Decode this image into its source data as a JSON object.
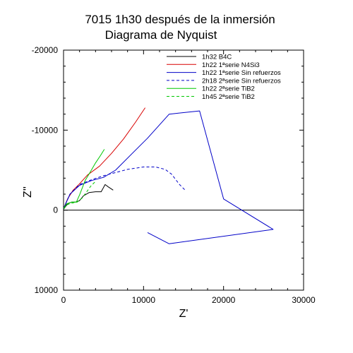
{
  "chart_data": {
    "type": "line",
    "title": "7015 1h30 después de la inmersión",
    "subtitle": "Diagrama de Nyquist",
    "xlabel": "Z'",
    "ylabel": "Z''",
    "xlim": [
      0,
      30000
    ],
    "ylim": [
      10000,
      -20000
    ],
    "y_inverted": true,
    "x_ticks": [
      0,
      10000,
      20000,
      30000
    ],
    "x_tick_labels": [
      "0",
      "10000",
      "20000",
      "30000"
    ],
    "y_ticks": [
      -20000,
      -10000,
      0,
      10000
    ],
    "y_tick_labels": [
      "-20000",
      "-10000",
      "0",
      "10000"
    ],
    "zero_line": true,
    "grid": false,
    "legend_position": "top-right",
    "series": [
      {
        "name": "1h32 B4C",
        "color": "#000000",
        "dash": "solid",
        "points": [
          [
            0,
            -100
          ],
          [
            500,
            -800
          ],
          [
            1000,
            -1000
          ],
          [
            1500,
            -1000
          ],
          [
            2000,
            -1200
          ],
          [
            2500,
            -1800
          ],
          [
            3200,
            -2200
          ],
          [
            4000,
            -2300
          ],
          [
            4700,
            -2300
          ],
          [
            5200,
            -3200
          ],
          [
            5600,
            -2900
          ],
          [
            6200,
            -2500
          ]
        ]
      },
      {
        "name": "1h22 1ªserie N4Si3",
        "color": "#d80000",
        "dash": "solid",
        "points": [
          [
            0,
            -200
          ],
          [
            500,
            -1400
          ],
          [
            1200,
            -2500
          ],
          [
            2000,
            -3300
          ],
          [
            3000,
            -4400
          ],
          [
            4500,
            -5500
          ],
          [
            6000,
            -7100
          ],
          [
            7500,
            -8900
          ],
          [
            9000,
            -11000
          ],
          [
            10200,
            -12800
          ]
        ]
      },
      {
        "name": "1h22 1ªserie Sin refuerzos",
        "color": "#0000c8",
        "dash": "solid",
        "points": [
          [
            0,
            -200
          ],
          [
            800,
            -2000
          ],
          [
            2000,
            -3100
          ],
          [
            3500,
            -3700
          ],
          [
            5000,
            -4100
          ],
          [
            6500,
            -5000
          ],
          [
            8500,
            -7000
          ],
          [
            10500,
            -9000
          ],
          [
            13200,
            -12000
          ],
          [
            17000,
            -12400
          ],
          [
            20000,
            -1400
          ],
          [
            26200,
            2400
          ],
          [
            13200,
            4200
          ],
          [
            10500,
            2800
          ]
        ]
      },
      {
        "name": "2h18 2ªserie Sin refuerzos",
        "color": "#0000c8",
        "dash": "dashed",
        "points": [
          [
            0,
            -200
          ],
          [
            800,
            -2000
          ],
          [
            2000,
            -3200
          ],
          [
            3500,
            -3800
          ],
          [
            5000,
            -4300
          ],
          [
            6500,
            -4700
          ],
          [
            8000,
            -5100
          ],
          [
            10000,
            -5400
          ],
          [
            11500,
            -5400
          ],
          [
            12700,
            -5100
          ],
          [
            13500,
            -4500
          ],
          [
            14500,
            -3200
          ],
          [
            15300,
            -2400
          ]
        ]
      },
      {
        "name": "1h22 2ªserie TiB2",
        "color": "#00c800",
        "dash": "solid",
        "points": [
          [
            0,
            -200
          ],
          [
            400,
            -800
          ],
          [
            1000,
            -1000
          ],
          [
            1600,
            -1000
          ],
          [
            2000,
            -1900
          ],
          [
            2700,
            -3700
          ],
          [
            3300,
            -4700
          ],
          [
            4000,
            -5900
          ],
          [
            4600,
            -6800
          ],
          [
            5100,
            -7600
          ]
        ]
      },
      {
        "name": "1h45 2ªserie TiB2",
        "color": "#00c800",
        "dash": "dashed",
        "points": [
          [
            0,
            -200
          ],
          [
            500,
            -700
          ],
          [
            1100,
            -900
          ],
          [
            1700,
            -1000
          ],
          [
            2300,
            -1500
          ],
          [
            2900,
            -2300
          ],
          [
            3400,
            -3000
          ],
          [
            3900,
            -3500
          ]
        ]
      }
    ]
  }
}
